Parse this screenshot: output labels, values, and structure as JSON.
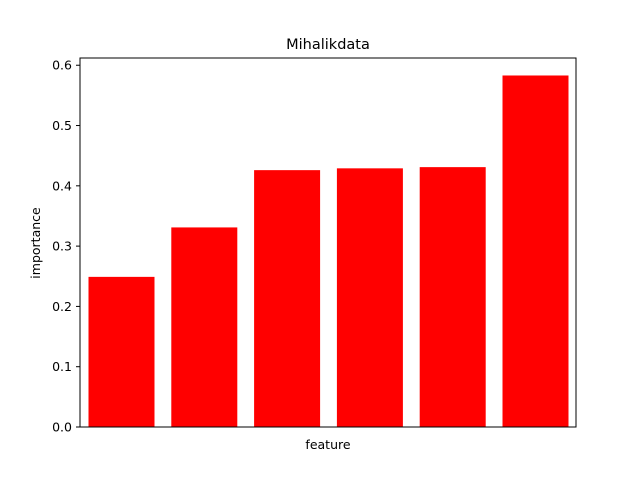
{
  "chart_data": {
    "type": "bar",
    "title": "Mihalikdata",
    "xlabel": "feature",
    "ylabel": "importance",
    "values": [
      0.249,
      0.331,
      0.426,
      0.429,
      0.431,
      0.583
    ],
    "ylim": [
      0,
      0.612
    ],
    "yticks": [
      "0.0",
      "0.1",
      "0.2",
      "0.3",
      "0.4",
      "0.5",
      "0.6"
    ],
    "bar_color": "#ff0000",
    "grid": false,
    "legend": "none"
  }
}
